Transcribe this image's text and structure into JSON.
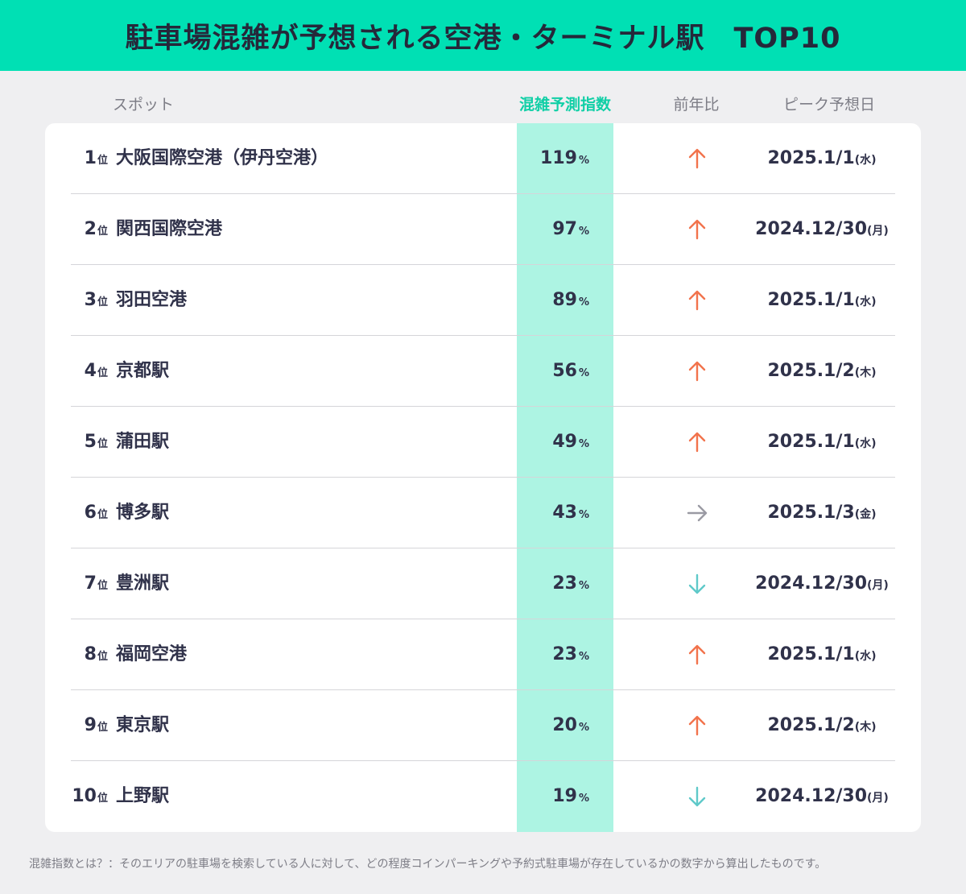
{
  "title": "駐車場混雑が予想される空港・ターミナル駅　TOP10",
  "columns": {
    "spot": "スポット",
    "index": "混雑予測指数",
    "yoy": "前年比",
    "peak": "ピーク予想日"
  },
  "rank_unit": "位",
  "percent_unit": "%",
  "colors": {
    "banner": "#00e0b4",
    "index_band": "#adf4e3",
    "index_header": "#10cfa6",
    "trend_up": "#f2734c",
    "trend_flat": "#9a9aa3",
    "trend_down": "#5fc9c9"
  },
  "chart_data": {
    "type": "table",
    "title": "駐車場混雑が予想される空港・ターミナル駅　TOP10",
    "rows": [
      {
        "rank": "1",
        "spot": "大阪国際空港（伊丹空港）",
        "index": "119",
        "trend": "up",
        "date": "2025.1/1",
        "weekday": "(水)"
      },
      {
        "rank": "2",
        "spot": "関西国際空港",
        "index": "97",
        "trend": "up",
        "date": "2024.12/30",
        "weekday": "(月)"
      },
      {
        "rank": "3",
        "spot": "羽田空港",
        "index": "89",
        "trend": "up",
        "date": "2025.1/1",
        "weekday": "(水)"
      },
      {
        "rank": "4",
        "spot": "京都駅",
        "index": "56",
        "trend": "up",
        "date": "2025.1/2",
        "weekday": "(木)"
      },
      {
        "rank": "5",
        "spot": "蒲田駅",
        "index": "49",
        "trend": "up",
        "date": "2025.1/1",
        "weekday": "(水)"
      },
      {
        "rank": "6",
        "spot": "博多駅",
        "index": "43",
        "trend": "flat",
        "date": "2025.1/3",
        "weekday": "(金)"
      },
      {
        "rank": "7",
        "spot": "豊洲駅",
        "index": "23",
        "trend": "down",
        "date": "2024.12/30",
        "weekday": "(月)"
      },
      {
        "rank": "8",
        "spot": "福岡空港",
        "index": "23",
        "trend": "up",
        "date": "2025.1/1",
        "weekday": "(水)"
      },
      {
        "rank": "9",
        "spot": "東京駅",
        "index": "20",
        "trend": "up",
        "date": "2025.1/2",
        "weekday": "(木)"
      },
      {
        "rank": "10",
        "spot": "上野駅",
        "index": "19",
        "trend": "down",
        "date": "2024.12/30",
        "weekday": "(月)"
      }
    ]
  },
  "footnote": "混雑指数とは？：そのエリアの駐車場を検索している人に対して、どの程度コインパーキングや予約式駐車場が存在しているかの数字から算出したものです。"
}
